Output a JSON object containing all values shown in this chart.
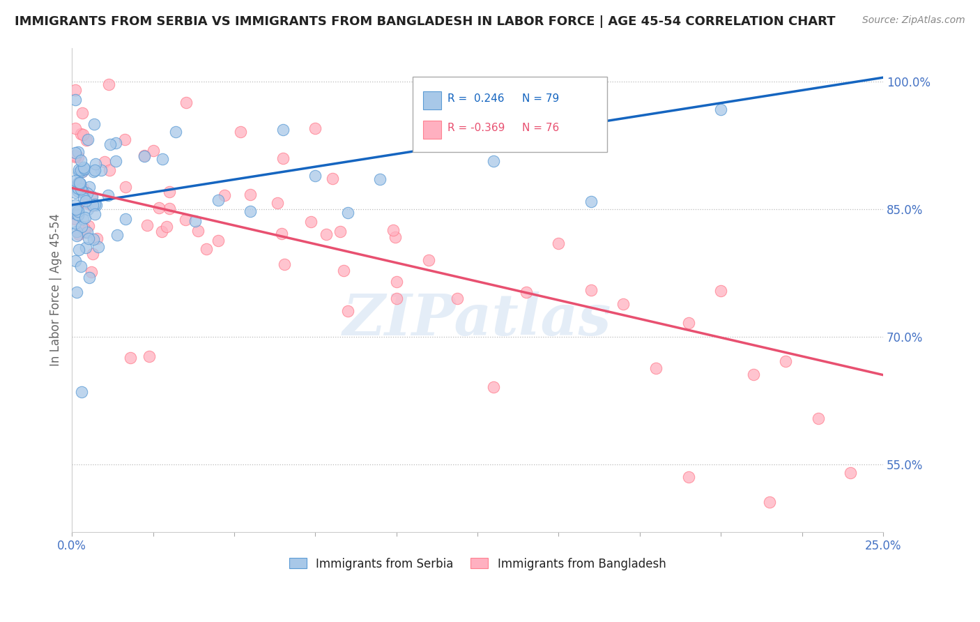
{
  "title": "IMMIGRANTS FROM SERBIA VS IMMIGRANTS FROM BANGLADESH IN LABOR FORCE | AGE 45-54 CORRELATION CHART",
  "source": "Source: ZipAtlas.com",
  "ylabel": "In Labor Force | Age 45-54",
  "xlim": [
    0.0,
    0.25
  ],
  "ylim": [
    0.47,
    1.04
  ],
  "xtick_positions": [
    0.0,
    0.025,
    0.05,
    0.075,
    0.1,
    0.125,
    0.15,
    0.175,
    0.2,
    0.225,
    0.25
  ],
  "ytick_positions": [
    0.55,
    0.7,
    0.85,
    1.0
  ],
  "ytick_labels": [
    "55.0%",
    "70.0%",
    "85.0%",
    "100.0%"
  ],
  "serbia_color": "#A8C8E8",
  "serbia_edge": "#5B9BD5",
  "bangladesh_color": "#FFB0C0",
  "bangladesh_edge": "#FF8090",
  "serbia_R": 0.246,
  "serbia_N": 79,
  "bangladesh_R": -0.369,
  "bangladesh_N": 76,
  "serbia_trend_color": "#1565C0",
  "bangladesh_trend_color": "#E85070",
  "serbia_trend_x0": 0.0,
  "serbia_trend_y0": 0.855,
  "serbia_trend_x1": 0.25,
  "serbia_trend_y1": 1.005,
  "bangladesh_trend_x0": 0.0,
  "bangladesh_trend_y0": 0.875,
  "bangladesh_trend_x1": 0.25,
  "bangladesh_trend_y1": 0.655,
  "watermark": "ZIPatlas",
  "legend_R_serbia_color": "#1565C0",
  "legend_R_bangladesh_color": "#E85070",
  "legend_N_color": "#333333"
}
